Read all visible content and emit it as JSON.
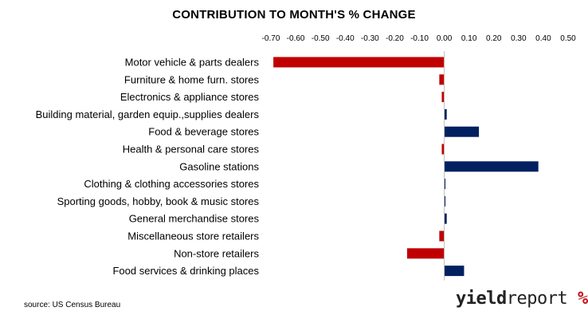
{
  "title": "CONTRIBUTION TO MONTH'S % CHANGE",
  "source": "source: US Census Bureau",
  "logo": {
    "part1": "yield",
    "part2": "report",
    "part3": "%"
  },
  "colors": {
    "positive": "#002060",
    "negative": "#c00000"
  },
  "chart_data": {
    "type": "bar",
    "orientation": "horizontal",
    "title": "CONTRIBUTION TO MONTH'S % CHANGE",
    "xlim": [
      -0.7,
      0.5
    ],
    "ticks": [
      "-0.70",
      "-0.60",
      "-0.50",
      "-0.40",
      "-0.30",
      "-0.20",
      "-0.10",
      "0.00",
      "0.10",
      "0.20",
      "0.30",
      "0.40",
      "0.50"
    ],
    "tick_values": [
      -0.7,
      -0.6,
      -0.5,
      -0.4,
      -0.3,
      -0.2,
      -0.1,
      0,
      0.1,
      0.2,
      0.3,
      0.4,
      0.5
    ],
    "axis_position": "top",
    "grid": false,
    "categories": [
      "Motor vehicle & parts dealers",
      "Furniture & home furn. stores",
      "Electronics & appliance stores",
      "Building material, garden equip.,supplies dealers",
      "Food & beverage stores",
      "Health & personal care stores",
      "Gasoline stations ",
      "Clothing & clothing accessories stores",
      "Sporting goods, hobby, book & music stores",
      "General merchandise stores",
      "Miscellaneous store retailers",
      "Non-store retailers",
      "Food services & drinking places"
    ],
    "values": [
      -0.69,
      -0.02,
      -0.01,
      0.01,
      0.14,
      -0.01,
      0.38,
      0.003,
      0.003,
      0.01,
      -0.02,
      -0.15,
      0.08
    ]
  }
}
